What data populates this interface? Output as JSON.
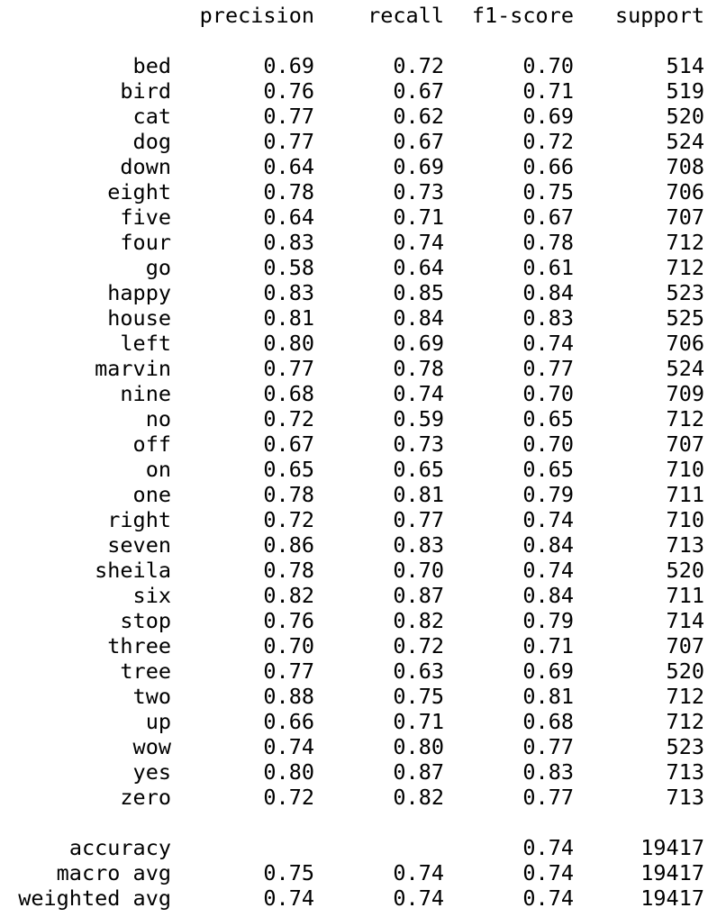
{
  "report": {
    "headers": [
      "precision",
      "recall",
      "f1-score",
      "support"
    ],
    "classes": [
      {
        "label": "bed",
        "precision": "0.69",
        "recall": "0.72",
        "f1": "0.70",
        "support": "514"
      },
      {
        "label": "bird",
        "precision": "0.76",
        "recall": "0.67",
        "f1": "0.71",
        "support": "519"
      },
      {
        "label": "cat",
        "precision": "0.77",
        "recall": "0.62",
        "f1": "0.69",
        "support": "520"
      },
      {
        "label": "dog",
        "precision": "0.77",
        "recall": "0.67",
        "f1": "0.72",
        "support": "524"
      },
      {
        "label": "down",
        "precision": "0.64",
        "recall": "0.69",
        "f1": "0.66",
        "support": "708"
      },
      {
        "label": "eight",
        "precision": "0.78",
        "recall": "0.73",
        "f1": "0.75",
        "support": "706"
      },
      {
        "label": "five",
        "precision": "0.64",
        "recall": "0.71",
        "f1": "0.67",
        "support": "707"
      },
      {
        "label": "four",
        "precision": "0.83",
        "recall": "0.74",
        "f1": "0.78",
        "support": "712"
      },
      {
        "label": "go",
        "precision": "0.58",
        "recall": "0.64",
        "f1": "0.61",
        "support": "712"
      },
      {
        "label": "happy",
        "precision": "0.83",
        "recall": "0.85",
        "f1": "0.84",
        "support": "523"
      },
      {
        "label": "house",
        "precision": "0.81",
        "recall": "0.84",
        "f1": "0.83",
        "support": "525"
      },
      {
        "label": "left",
        "precision": "0.80",
        "recall": "0.69",
        "f1": "0.74",
        "support": "706"
      },
      {
        "label": "marvin",
        "precision": "0.77",
        "recall": "0.78",
        "f1": "0.77",
        "support": "524"
      },
      {
        "label": "nine",
        "precision": "0.68",
        "recall": "0.74",
        "f1": "0.70",
        "support": "709"
      },
      {
        "label": "no",
        "precision": "0.72",
        "recall": "0.59",
        "f1": "0.65",
        "support": "712"
      },
      {
        "label": "off",
        "precision": "0.67",
        "recall": "0.73",
        "f1": "0.70",
        "support": "707"
      },
      {
        "label": "on",
        "precision": "0.65",
        "recall": "0.65",
        "f1": "0.65",
        "support": "710"
      },
      {
        "label": "one",
        "precision": "0.78",
        "recall": "0.81",
        "f1": "0.79",
        "support": "711"
      },
      {
        "label": "right",
        "precision": "0.72",
        "recall": "0.77",
        "f1": "0.74",
        "support": "710"
      },
      {
        "label": "seven",
        "precision": "0.86",
        "recall": "0.83",
        "f1": "0.84",
        "support": "713"
      },
      {
        "label": "sheila",
        "precision": "0.78",
        "recall": "0.70",
        "f1": "0.74",
        "support": "520"
      },
      {
        "label": "six",
        "precision": "0.82",
        "recall": "0.87",
        "f1": "0.84",
        "support": "711"
      },
      {
        "label": "stop",
        "precision": "0.76",
        "recall": "0.82",
        "f1": "0.79",
        "support": "714"
      },
      {
        "label": "three",
        "precision": "0.70",
        "recall": "0.72",
        "f1": "0.71",
        "support": "707"
      },
      {
        "label": "tree",
        "precision": "0.77",
        "recall": "0.63",
        "f1": "0.69",
        "support": "520"
      },
      {
        "label": "two",
        "precision": "0.88",
        "recall": "0.75",
        "f1": "0.81",
        "support": "712"
      },
      {
        "label": "up",
        "precision": "0.66",
        "recall": "0.71",
        "f1": "0.68",
        "support": "712"
      },
      {
        "label": "wow",
        "precision": "0.74",
        "recall": "0.80",
        "f1": "0.77",
        "support": "523"
      },
      {
        "label": "yes",
        "precision": "0.80",
        "recall": "0.87",
        "f1": "0.83",
        "support": "713"
      },
      {
        "label": "zero",
        "precision": "0.72",
        "recall": "0.82",
        "f1": "0.77",
        "support": "713"
      }
    ],
    "summary": [
      {
        "label": "accuracy",
        "precision": "",
        "recall": "",
        "f1": "0.74",
        "support": "19417"
      },
      {
        "label": "macro avg",
        "precision": "0.75",
        "recall": "0.74",
        "f1": "0.74",
        "support": "19417"
      },
      {
        "label": "weighted avg",
        "precision": "0.74",
        "recall": "0.74",
        "f1": "0.74",
        "support": "19417"
      }
    ]
  }
}
